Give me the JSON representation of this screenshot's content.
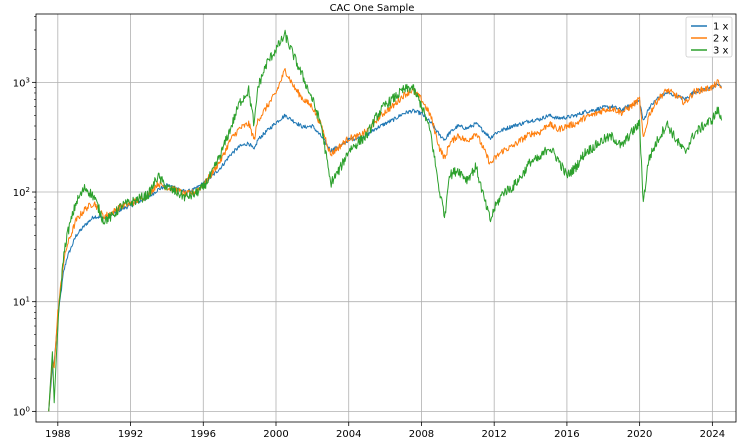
{
  "chart_data": {
    "type": "line",
    "title": "CAC One Sample",
    "xlabel": "",
    "ylabel": "",
    "x_scale": "time",
    "y_scale": "log",
    "xlim": [
      1986.8,
      2025.3
    ],
    "ylim": [
      0.8,
      4200
    ],
    "grid": true,
    "legend_position": "top-right",
    "x_ticks": [
      1988,
      1992,
      1996,
      2000,
      2004,
      2008,
      2012,
      2016,
      2020,
      2024
    ],
    "x_tick_labels": [
      "1988",
      "1992",
      "1996",
      "2000",
      "2004",
      "2008",
      "2012",
      "2016",
      "2020",
      "2024"
    ],
    "y_ticks": [
      1,
      10,
      100,
      1000
    ],
    "y_tick_labels": [
      {
        "base": "10",
        "exp": "0"
      },
      {
        "base": "10",
        "exp": "1"
      },
      {
        "base": "10",
        "exp": "2"
      },
      {
        "base": "10",
        "exp": "3"
      }
    ],
    "series": [
      {
        "name": "1 x",
        "color": "#1f77b4",
        "x": [
          1987.5,
          1987.7,
          1987.8,
          1988.0,
          1988.3,
          1988.5,
          1989.0,
          1989.5,
          1990.0,
          1990.5,
          1991.0,
          1991.5,
          1992.0,
          1993.0,
          1993.5,
          1994.0,
          1994.5,
          1995.0,
          1995.5,
          1996.0,
          1996.5,
          1997.0,
          1997.5,
          1998.0,
          1998.5,
          1998.8,
          1999.0,
          1999.5,
          2000.0,
          2000.5,
          2001.0,
          2001.5,
          2002.0,
          2002.5,
          2003.0,
          2003.5,
          2004.0,
          2004.5,
          2005.0,
          2005.5,
          2006.0,
          2006.5,
          2007.0,
          2007.5,
          2008.0,
          2008.5,
          2009.0,
          2009.3,
          2009.5,
          2010.0,
          2010.5,
          2011.0,
          2011.5,
          2011.8,
          2012.0,
          2012.5,
          2013.0,
          2013.5,
          2014.0,
          2014.5,
          2015.0,
          2015.5,
          2016.0,
          2016.5,
          2017.0,
          2017.5,
          2018.0,
          2018.5,
          2019.0,
          2019.5,
          2020.0,
          2020.2,
          2020.5,
          2021.0,
          2021.5,
          2022.0,
          2022.5,
          2023.0,
          2023.5,
          2024.0,
          2024.3,
          2024.5
        ],
        "y": [
          1.0,
          2.5,
          2.8,
          7,
          18,
          25,
          40,
          50,
          60,
          58,
          62,
          70,
          75,
          90,
          105,
          115,
          110,
          100,
          105,
          120,
          140,
          170,
          220,
          260,
          280,
          240,
          300,
          360,
          430,
          500,
          440,
          390,
          400,
          320,
          240,
          260,
          300,
          310,
          330,
          380,
          420,
          460,
          520,
          550,
          520,
          430,
          330,
          300,
          340,
          400,
          380,
          420,
          350,
          310,
          340,
          370,
          400,
          420,
          450,
          460,
          500,
          470,
          480,
          500,
          540,
          560,
          590,
          600,
          560,
          620,
          680,
          440,
          580,
          720,
          800,
          760,
          700,
          820,
          860,
          880,
          980,
          900
        ]
      },
      {
        "name": "2 x",
        "color": "#ff7f0e",
        "x": [
          1987.5,
          1987.7,
          1987.8,
          1988.0,
          1988.3,
          1988.5,
          1989.0,
          1989.5,
          1990.0,
          1990.5,
          1991.0,
          1991.5,
          1992.0,
          1993.0,
          1993.5,
          1994.0,
          1994.5,
          1995.0,
          1995.5,
          1996.0,
          1996.5,
          1997.0,
          1997.5,
          1998.0,
          1998.5,
          1998.8,
          1999.0,
          1999.5,
          2000.0,
          2000.5,
          2001.0,
          2001.5,
          2002.0,
          2002.5,
          2003.0,
          2003.5,
          2004.0,
          2004.5,
          2005.0,
          2005.5,
          2006.0,
          2006.5,
          2007.0,
          2007.5,
          2008.0,
          2008.5,
          2009.0,
          2009.3,
          2009.5,
          2010.0,
          2010.5,
          2011.0,
          2011.5,
          2011.8,
          2012.0,
          2012.5,
          2013.0,
          2013.5,
          2014.0,
          2014.5,
          2015.0,
          2015.5,
          2016.0,
          2016.5,
          2017.0,
          2017.5,
          2018.0,
          2018.5,
          2019.0,
          2019.5,
          2020.0,
          2020.2,
          2020.5,
          2021.0,
          2021.5,
          2022.0,
          2022.5,
          2023.0,
          2023.5,
          2024.0,
          2024.3,
          2024.5
        ],
        "y": [
          1.0,
          3.0,
          2.5,
          8,
          22,
          32,
          55,
          70,
          80,
          60,
          65,
          75,
          78,
          95,
          120,
          110,
          105,
          95,
          100,
          115,
          150,
          200,
          300,
          380,
          420,
          300,
          450,
          600,
          800,
          1300,
          900,
          700,
          600,
          400,
          220,
          260,
          310,
          320,
          360,
          450,
          540,
          620,
          760,
          850,
          700,
          500,
          250,
          200,
          270,
          330,
          290,
          350,
          230,
          180,
          200,
          240,
          260,
          300,
          340,
          350,
          420,
          370,
          400,
          420,
          480,
          510,
          560,
          580,
          530,
          600,
          700,
          300,
          500,
          700,
          850,
          760,
          650,
          820,
          860,
          900,
          1000,
          880
        ]
      },
      {
        "name": "3 x",
        "color": "#2ca02c",
        "x": [
          1987.5,
          1987.7,
          1987.8,
          1988.0,
          1988.3,
          1988.5,
          1989.0,
          1989.5,
          1990.0,
          1990.5,
          1991.0,
          1991.5,
          1992.0,
          1993.0,
          1993.5,
          1994.0,
          1994.5,
          1995.0,
          1995.5,
          1996.0,
          1996.5,
          1997.0,
          1997.5,
          1998.0,
          1998.5,
          1998.8,
          1999.0,
          1999.5,
          2000.0,
          2000.5,
          2001.0,
          2001.5,
          2002.0,
          2002.5,
          2003.0,
          2003.5,
          2004.0,
          2004.5,
          2005.0,
          2005.5,
          2006.0,
          2006.5,
          2007.0,
          2007.5,
          2008.0,
          2008.5,
          2009.0,
          2009.3,
          2009.5,
          2010.0,
          2010.5,
          2011.0,
          2011.5,
          2011.8,
          2012.0,
          2012.5,
          2013.0,
          2013.5,
          2014.0,
          2014.5,
          2015.0,
          2015.5,
          2016.0,
          2016.5,
          2017.0,
          2017.5,
          2018.0,
          2018.5,
          2019.0,
          2019.5,
          2020.0,
          2020.2,
          2020.5,
          2021.0,
          2021.5,
          2022.0,
          2022.5,
          2023.0,
          2023.5,
          2024.0,
          2024.3,
          2024.5
        ],
        "y": [
          1.0,
          3.5,
          1.2,
          6,
          25,
          40,
          80,
          110,
          90,
          55,
          60,
          75,
          80,
          95,
          140,
          110,
          100,
          90,
          95,
          110,
          150,
          230,
          380,
          650,
          850,
          400,
          900,
          1500,
          2000,
          2700,
          1700,
          1100,
          700,
          400,
          120,
          160,
          240,
          280,
          330,
          480,
          620,
          720,
          850,
          900,
          620,
          350,
          100,
          60,
          140,
          160,
          130,
          170,
          80,
          55,
          70,
          100,
          110,
          140,
          190,
          200,
          260,
          200,
          140,
          170,
          230,
          260,
          300,
          320,
          260,
          340,
          420,
          80,
          200,
          300,
          420,
          300,
          230,
          340,
          400,
          460,
          560,
          450
        ]
      }
    ]
  }
}
